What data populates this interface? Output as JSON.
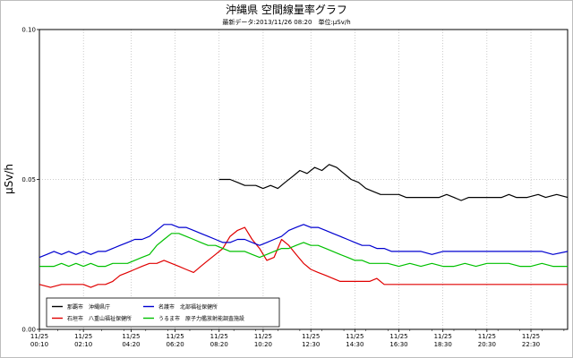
{
  "chart_data": {
    "type": "line",
    "title": "沖縄県 空間線量率グラフ",
    "subtitle": "最新データ:2013/11/26 08:20　単位:μSv/h",
    "ylabel": "μSv/h",
    "xlabel": "",
    "ylim": [
      0,
      0.1
    ],
    "y_ticks": [
      "0.00",
      "0.05",
      "0.10"
    ],
    "x_ticks": [
      [
        "11/25",
        "00:10"
      ],
      [
        "11/25",
        "02:10"
      ],
      [
        "11/25",
        "04:20"
      ],
      [
        "11/25",
        "06:20"
      ],
      [
        "11/25",
        "08:20"
      ],
      [
        "11/25",
        "10:20"
      ],
      [
        "11/25",
        "12:30"
      ],
      [
        "11/25",
        "14:30"
      ],
      [
        "11/25",
        "16:30"
      ],
      [
        "11/25",
        "18:30"
      ],
      [
        "11/25",
        "20:30"
      ],
      [
        "11/25",
        "22:30"
      ]
    ],
    "x_hours": [
      0.1667,
      2.1667,
      4.3333,
      6.3333,
      8.3333,
      10.3333,
      12.5,
      14.5,
      16.5,
      18.5,
      20.5,
      22.5
    ],
    "xlim": [
      0.1667,
      24.1667
    ],
    "grid": true,
    "legend_position": "bottom-left",
    "series": [
      {
        "name": "那覇市　沖縄県庁",
        "color": "#000000",
        "points": [
          [
            8.33,
            0.05
          ],
          [
            8.83,
            0.05
          ],
          [
            9.17,
            0.049
          ],
          [
            9.5,
            0.048
          ],
          [
            10.0,
            0.048
          ],
          [
            10.33,
            0.047
          ],
          [
            10.67,
            0.048
          ],
          [
            11.0,
            0.047
          ],
          [
            11.33,
            0.049
          ],
          [
            11.67,
            0.051
          ],
          [
            12.0,
            0.053
          ],
          [
            12.33,
            0.052
          ],
          [
            12.67,
            0.054
          ],
          [
            13.0,
            0.053
          ],
          [
            13.33,
            0.055
          ],
          [
            13.67,
            0.054
          ],
          [
            14.0,
            0.052
          ],
          [
            14.33,
            0.05
          ],
          [
            14.67,
            0.049
          ],
          [
            15.0,
            0.047
          ],
          [
            15.33,
            0.046
          ],
          [
            15.67,
            0.045
          ],
          [
            16.0,
            0.045
          ],
          [
            16.5,
            0.045
          ],
          [
            16.83,
            0.044
          ],
          [
            17.33,
            0.044
          ],
          [
            17.83,
            0.044
          ],
          [
            18.33,
            0.044
          ],
          [
            18.67,
            0.045
          ],
          [
            19.0,
            0.044
          ],
          [
            19.33,
            0.043
          ],
          [
            19.67,
            0.044
          ],
          [
            20.17,
            0.044
          ],
          [
            20.67,
            0.044
          ],
          [
            21.17,
            0.044
          ],
          [
            21.5,
            0.045
          ],
          [
            21.83,
            0.044
          ],
          [
            22.33,
            0.044
          ],
          [
            22.83,
            0.045
          ],
          [
            23.17,
            0.044
          ],
          [
            23.67,
            0.045
          ],
          [
            24.17,
            0.044
          ]
        ]
      },
      {
        "name": "石垣市　八重山福祉保健所",
        "color": "#e00000",
        "points": [
          [
            0.17,
            0.015
          ],
          [
            0.67,
            0.014
          ],
          [
            1.17,
            0.015
          ],
          [
            1.67,
            0.015
          ],
          [
            2.17,
            0.015
          ],
          [
            2.5,
            0.014
          ],
          [
            2.83,
            0.015
          ],
          [
            3.17,
            0.015
          ],
          [
            3.5,
            0.016
          ],
          [
            3.83,
            0.018
          ],
          [
            4.17,
            0.019
          ],
          [
            4.5,
            0.02
          ],
          [
            4.83,
            0.021
          ],
          [
            5.17,
            0.022
          ],
          [
            5.5,
            0.022
          ],
          [
            5.83,
            0.023
          ],
          [
            6.17,
            0.022
          ],
          [
            6.5,
            0.021
          ],
          [
            6.83,
            0.02
          ],
          [
            7.17,
            0.019
          ],
          [
            7.5,
            0.021
          ],
          [
            7.83,
            0.023
          ],
          [
            8.17,
            0.025
          ],
          [
            8.5,
            0.027
          ],
          [
            8.83,
            0.031
          ],
          [
            9.17,
            0.033
          ],
          [
            9.5,
            0.034
          ],
          [
            9.83,
            0.03
          ],
          [
            10.17,
            0.027
          ],
          [
            10.5,
            0.023
          ],
          [
            10.83,
            0.024
          ],
          [
            11.17,
            0.03
          ],
          [
            11.5,
            0.028
          ],
          [
            11.83,
            0.025
          ],
          [
            12.17,
            0.022
          ],
          [
            12.5,
            0.02
          ],
          [
            12.83,
            0.019
          ],
          [
            13.17,
            0.018
          ],
          [
            13.5,
            0.017
          ],
          [
            13.83,
            0.016
          ],
          [
            14.33,
            0.016
          ],
          [
            14.83,
            0.016
          ],
          [
            15.17,
            0.016
          ],
          [
            15.5,
            0.017
          ],
          [
            15.83,
            0.015
          ],
          [
            16.5,
            0.015
          ],
          [
            17.5,
            0.015
          ],
          [
            18.5,
            0.015
          ],
          [
            19.5,
            0.015
          ],
          [
            20.5,
            0.015
          ],
          [
            21.5,
            0.015
          ],
          [
            22.5,
            0.015
          ],
          [
            23.5,
            0.015
          ],
          [
            24.17,
            0.015
          ]
        ]
      },
      {
        "name": "名護市　北部福祉保健所",
        "color": "#0000d0",
        "points": [
          [
            0.17,
            0.024
          ],
          [
            0.5,
            0.025
          ],
          [
            0.83,
            0.026
          ],
          [
            1.17,
            0.025
          ],
          [
            1.5,
            0.026
          ],
          [
            1.83,
            0.025
          ],
          [
            2.17,
            0.026
          ],
          [
            2.5,
            0.025
          ],
          [
            2.83,
            0.026
          ],
          [
            3.17,
            0.026
          ],
          [
            3.5,
            0.027
          ],
          [
            3.83,
            0.028
          ],
          [
            4.17,
            0.029
          ],
          [
            4.5,
            0.03
          ],
          [
            4.83,
            0.03
          ],
          [
            5.17,
            0.031
          ],
          [
            5.5,
            0.033
          ],
          [
            5.83,
            0.035
          ],
          [
            6.17,
            0.035
          ],
          [
            6.5,
            0.034
          ],
          [
            6.83,
            0.034
          ],
          [
            7.17,
            0.033
          ],
          [
            7.5,
            0.032
          ],
          [
            7.83,
            0.031
          ],
          [
            8.17,
            0.03
          ],
          [
            8.5,
            0.029
          ],
          [
            8.83,
            0.029
          ],
          [
            9.17,
            0.03
          ],
          [
            9.5,
            0.03
          ],
          [
            9.83,
            0.029
          ],
          [
            10.17,
            0.028
          ],
          [
            10.5,
            0.029
          ],
          [
            10.83,
            0.03
          ],
          [
            11.17,
            0.031
          ],
          [
            11.5,
            0.033
          ],
          [
            11.83,
            0.034
          ],
          [
            12.17,
            0.035
          ],
          [
            12.5,
            0.034
          ],
          [
            12.83,
            0.034
          ],
          [
            13.17,
            0.033
          ],
          [
            13.5,
            0.032
          ],
          [
            13.83,
            0.031
          ],
          [
            14.17,
            0.03
          ],
          [
            14.5,
            0.029
          ],
          [
            14.83,
            0.028
          ],
          [
            15.17,
            0.028
          ],
          [
            15.5,
            0.027
          ],
          [
            15.83,
            0.027
          ],
          [
            16.17,
            0.026
          ],
          [
            16.5,
            0.026
          ],
          [
            17.0,
            0.026
          ],
          [
            17.5,
            0.026
          ],
          [
            18.0,
            0.025
          ],
          [
            18.5,
            0.026
          ],
          [
            19.0,
            0.026
          ],
          [
            19.5,
            0.026
          ],
          [
            20.0,
            0.026
          ],
          [
            20.5,
            0.026
          ],
          [
            21.0,
            0.026
          ],
          [
            21.5,
            0.026
          ],
          [
            22.0,
            0.026
          ],
          [
            22.5,
            0.026
          ],
          [
            23.0,
            0.026
          ],
          [
            23.5,
            0.025
          ],
          [
            24.17,
            0.026
          ]
        ]
      },
      {
        "name": "うるま市　原子力艦放射能調査施設",
        "color": "#00c000",
        "points": [
          [
            0.17,
            0.021
          ],
          [
            0.5,
            0.021
          ],
          [
            0.83,
            0.021
          ],
          [
            1.17,
            0.022
          ],
          [
            1.5,
            0.021
          ],
          [
            1.83,
            0.022
          ],
          [
            2.17,
            0.021
          ],
          [
            2.5,
            0.022
          ],
          [
            2.83,
            0.021
          ],
          [
            3.17,
            0.021
          ],
          [
            3.5,
            0.022
          ],
          [
            3.83,
            0.022
          ],
          [
            4.17,
            0.022
          ],
          [
            4.5,
            0.023
          ],
          [
            4.83,
            0.024
          ],
          [
            5.17,
            0.025
          ],
          [
            5.5,
            0.028
          ],
          [
            5.83,
            0.03
          ],
          [
            6.17,
            0.032
          ],
          [
            6.5,
            0.032
          ],
          [
            6.83,
            0.031
          ],
          [
            7.17,
            0.03
          ],
          [
            7.5,
            0.029
          ],
          [
            7.83,
            0.028
          ],
          [
            8.17,
            0.028
          ],
          [
            8.5,
            0.027
          ],
          [
            8.83,
            0.026
          ],
          [
            9.17,
            0.026
          ],
          [
            9.5,
            0.026
          ],
          [
            9.83,
            0.025
          ],
          [
            10.17,
            0.024
          ],
          [
            10.5,
            0.025
          ],
          [
            10.83,
            0.026
          ],
          [
            11.17,
            0.027
          ],
          [
            11.5,
            0.027
          ],
          [
            11.83,
            0.028
          ],
          [
            12.17,
            0.029
          ],
          [
            12.5,
            0.028
          ],
          [
            12.83,
            0.028
          ],
          [
            13.17,
            0.027
          ],
          [
            13.5,
            0.026
          ],
          [
            13.83,
            0.025
          ],
          [
            14.17,
            0.024
          ],
          [
            14.5,
            0.023
          ],
          [
            14.83,
            0.023
          ],
          [
            15.17,
            0.022
          ],
          [
            15.5,
            0.022
          ],
          [
            16.0,
            0.022
          ],
          [
            16.5,
            0.021
          ],
          [
            17.0,
            0.022
          ],
          [
            17.5,
            0.021
          ],
          [
            18.0,
            0.022
          ],
          [
            18.5,
            0.021
          ],
          [
            19.0,
            0.021
          ],
          [
            19.5,
            0.022
          ],
          [
            20.0,
            0.021
          ],
          [
            20.5,
            0.022
          ],
          [
            21.0,
            0.022
          ],
          [
            21.5,
            0.022
          ],
          [
            22.0,
            0.021
          ],
          [
            22.5,
            0.021
          ],
          [
            23.0,
            0.022
          ],
          [
            23.5,
            0.021
          ],
          [
            24.17,
            0.021
          ]
        ]
      }
    ]
  }
}
